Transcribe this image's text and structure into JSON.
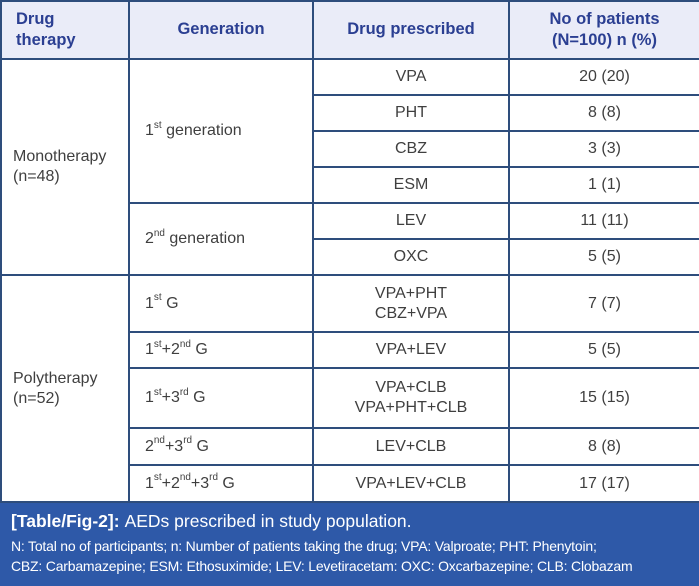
{
  "colors": {
    "table_border": "#2e4d7c",
    "header_background": "#eaecf8",
    "header_text": "#2b3f92",
    "body_text": "#3f3f3f",
    "caption_background": "#2e59a8",
    "caption_text": "#ffffff"
  },
  "table": {
    "header": {
      "drug_therapy": "Drug\ntherapy",
      "generation": "Generation",
      "drug_prescribed": "Drug prescribed",
      "no_of_patients": "No of patients\n(N=100) n (%)"
    },
    "monotherapy": {
      "label": "Monotherapy\n(n=48)",
      "generations": [
        {
          "label": "1^st^ generation",
          "drugs": [
            {
              "name": "VPA",
              "count": "20 (20)"
            },
            {
              "name": "PHT",
              "count": "8 (8)"
            },
            {
              "name": "CBZ",
              "count": "3 (3)"
            },
            {
              "name": "ESM",
              "count": "1 (1)"
            }
          ]
        },
        {
          "label": "2^nd^ generation",
          "drugs": [
            {
              "name": "LEV",
              "count": "11 (11)"
            },
            {
              "name": "OXC",
              "count": "5 (5)"
            }
          ]
        }
      ]
    },
    "polytherapy": {
      "label": "Polytherapy\n(n=52)",
      "rows": [
        {
          "generation": "1^st^ G",
          "drugs": "VPA+PHT\nCBZ+VPA",
          "count": "7 (7)"
        },
        {
          "generation": "1^st^+2^nd^ G",
          "drugs": "VPA+LEV",
          "count": "5 (5)"
        },
        {
          "generation": "1^st^+3^rd^ G",
          "drugs": "VPA+CLB\nVPA+PHT+CLB",
          "count": "15 (15)"
        },
        {
          "generation": "2^nd^+3^rd^ G",
          "drugs": "LEV+CLB",
          "count": "8 (8)"
        },
        {
          "generation": "1^st^+2^nd^+3^rd^ G",
          "drugs": "VPA+LEV+CLB",
          "count": "17 (17)"
        }
      ]
    }
  },
  "caption": {
    "label": "[Table/Fig-2]:",
    "title": "AEDs prescribed in study population.",
    "notes": "N: Total no of participants; n: Number of patients taking the drug; VPA: Valproate; PHT: Phenytoin;\nCBZ: Carbamazepine; ESM: Ethosuximide; LEV: Levetiracetam: OXC: Oxcarbazepine; CLB: Clobazam"
  }
}
